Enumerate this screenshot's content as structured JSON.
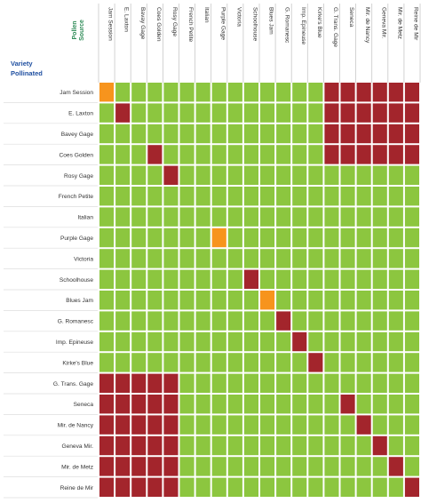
{
  "chart_data": {
    "type": "heatmap",
    "header_source": [
      "Pollen",
      "Source"
    ],
    "header_variety": [
      "Variety",
      "Pollinated"
    ],
    "columns": [
      "Jam Session",
      "E. Laxton",
      "Bavay Gage",
      "Coes Golden",
      "Rosy Gage",
      "French Petite",
      "Italian",
      "Purple Gage",
      "Victoria",
      "Schoolhouse",
      "Blues Jam",
      "G. Romanesc",
      "Imp. Epineuse",
      "Kirke's Blue",
      "G. Trans. Gage",
      "Seneca",
      "Mir. de Nancy",
      "Geneva Mir.",
      "Mir. de Metz",
      "Reine de Mir"
    ],
    "rows": [
      "Jam Session",
      "E. Laxton",
      "Bavey Gage",
      "Coes Golden",
      "Rosy Gage",
      "French Petite",
      "Italian",
      "Purple Gage",
      "Victoria",
      "Schoolhouse",
      "Blues Jam",
      "G. Romanesc",
      "Imp. Epineuse",
      "Kirke's Blue",
      "G. Trans. Gage",
      "Seneca",
      "Mir. de Nancy",
      "Geneva Mir.",
      "Mir. de Metz",
      "Reine de Mir"
    ],
    "categories": {
      "G": "compatible",
      "R": "incompatible",
      "O": "partial"
    },
    "colors": {
      "G": "#8cc63f",
      "R": "#a3252c",
      "O": "#f7941d",
      "grid": "#ffffff"
    },
    "cells": [
      "OGGGGGGGGGGGGGRRRRRR",
      "GRGGGGGGGGGGGGRRRRRR",
      "GGGGGGGGGGGGGGRRRRRR",
      "GGGRGGGGGGGGGGRRRRRR",
      "GGGGRGGGGGGGGGGGGGGG",
      "GGGGGGGGGGGGGGGGGGGG",
      "GGGGGGGGGGGGGGGGGGGG",
      "GGGGGGGOGGGGGGGGGGGG",
      "GGGGGGGGGGGGGGGGGGGG",
      "GGGGGGGGGRGGGGGGGGGG",
      "GGGGGGGGGGOGGGGGGGGG",
      "GGGGGGGGGGGRGGGGGGGG",
      "GGGGGGGGGGGGRGGGGGGG",
      "GGGGGGGGGGGGGRGGGGGG",
      "RRRRRGGGGGGGGGGGGGGG",
      "RRRRRGGGGGGGGGGRGGGG",
      "RRRRRGGGGGGGGGGGRGGG",
      "RRRRRGGGGGGGGGGGGRGG",
      "RRRRRGGGGGGGGGGGGGRG",
      "RRRRRGGGGGGGGGGGGGGR"
    ]
  }
}
